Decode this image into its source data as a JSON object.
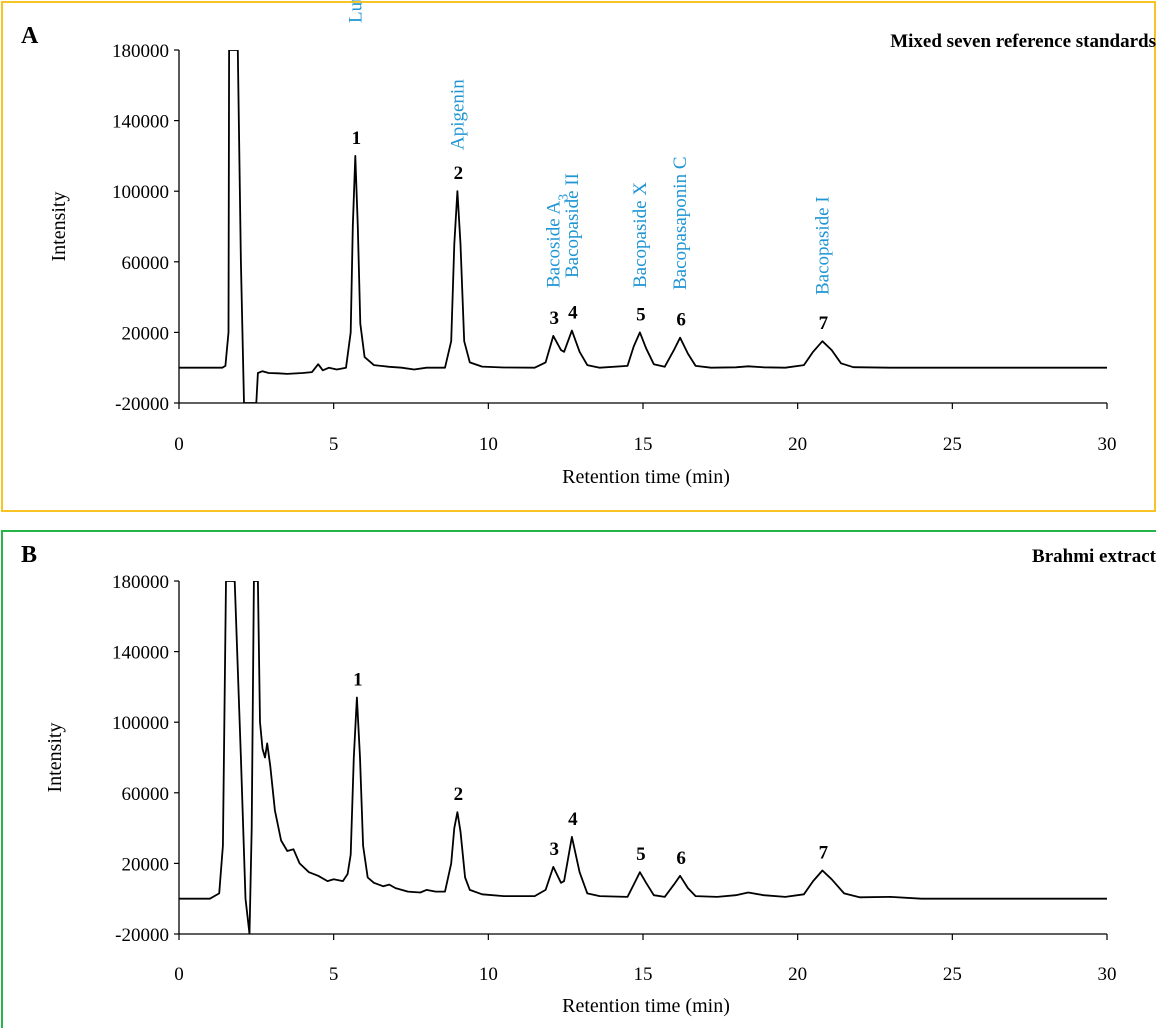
{
  "accent_colors": {
    "panel_a_border": "#f7c325",
    "panel_b_border": "#26b34a",
    "compound_label": "#1f95d3",
    "trace": "#000000"
  },
  "chart_data": [
    {
      "type": "line",
      "panel_letter": "A",
      "title": "Mixed seven reference standards",
      "xlabel": "Retention time (min)",
      "ylabel": "Intensity",
      "xlim": [
        0,
        30
      ],
      "ylim": [
        -20000,
        180000
      ],
      "x_ticks": [
        0,
        5,
        10,
        15,
        20,
        25,
        30
      ],
      "y_ticks": [
        -20000,
        20000,
        60000,
        100000,
        140000,
        180000
      ],
      "x_tick_labels": [
        "0",
        "5",
        "10",
        "15",
        "20",
        "25",
        "30"
      ],
      "y_tick_labels": [
        "-20000",
        "20000",
        "60000",
        "100000",
        "140000",
        "180000"
      ],
      "baseline": 0,
      "peaks": [
        {
          "num": "1",
          "x": 5.7,
          "y": 120000,
          "compound": "Luteolin"
        },
        {
          "num": "2",
          "x": 9.0,
          "y": 100000,
          "compound": "Apigenin"
        },
        {
          "num": "3",
          "x": 12.1,
          "y": 18000,
          "compound": "Bacoside A",
          "compound_sub": "3"
        },
        {
          "num": "4",
          "x": 12.7,
          "y": 21000,
          "compound": "Bacopaside II"
        },
        {
          "num": "5",
          "x": 14.9,
          "y": 20000,
          "compound": "Bacopaside X"
        },
        {
          "num": "6",
          "x": 16.2,
          "y": 17000,
          "compound": "Bacopasaponin C"
        },
        {
          "num": "7",
          "x": 20.8,
          "y": 15000,
          "compound": "Bacopaside I"
        }
      ],
      "trace": [
        [
          0,
          0
        ],
        [
          1.4,
          0
        ],
        [
          1.5,
          1000
        ],
        [
          1.6,
          20000
        ],
        [
          1.62,
          180000
        ],
        [
          1.9,
          180000
        ],
        [
          2.0,
          60000
        ],
        [
          2.1,
          -20000
        ],
        [
          2.5,
          -20000
        ],
        [
          2.55,
          -3000
        ],
        [
          2.7,
          -2000
        ],
        [
          2.9,
          -3000
        ],
        [
          3.2,
          -3200
        ],
        [
          3.5,
          -3500
        ],
        [
          4.0,
          -3000
        ],
        [
          4.3,
          -2500
        ],
        [
          4.5,
          2000
        ],
        [
          4.65,
          -1500
        ],
        [
          4.85,
          0
        ],
        [
          5.1,
          -1000
        ],
        [
          5.4,
          0
        ],
        [
          5.55,
          20000
        ],
        [
          5.62,
          80000
        ],
        [
          5.7,
          120000
        ],
        [
          5.78,
          80000
        ],
        [
          5.86,
          25000
        ],
        [
          6.0,
          6000
        ],
        [
          6.3,
          1500
        ],
        [
          6.8,
          500
        ],
        [
          7.2,
          0
        ],
        [
          7.6,
          -1000
        ],
        [
          8.0,
          0
        ],
        [
          8.6,
          0
        ],
        [
          8.8,
          15000
        ],
        [
          8.9,
          70000
        ],
        [
          9.0,
          100000
        ],
        [
          9.1,
          70000
        ],
        [
          9.22,
          15000
        ],
        [
          9.4,
          3000
        ],
        [
          9.8,
          600
        ],
        [
          10.5,
          100
        ],
        [
          11.5,
          0
        ],
        [
          11.85,
          3000
        ],
        [
          12.1,
          18000
        ],
        [
          12.35,
          10000
        ],
        [
          12.45,
          9000
        ],
        [
          12.7,
          21000
        ],
        [
          12.95,
          9000
        ],
        [
          13.2,
          1500
        ],
        [
          13.6,
          0
        ],
        [
          14.5,
          1000
        ],
        [
          14.7,
          12000
        ],
        [
          14.9,
          20000
        ],
        [
          15.1,
          11000
        ],
        [
          15.35,
          2000
        ],
        [
          15.7,
          500
        ],
        [
          16.0,
          10000
        ],
        [
          16.2,
          17000
        ],
        [
          16.45,
          8000
        ],
        [
          16.7,
          1000
        ],
        [
          17.2,
          0
        ],
        [
          18.0,
          200
        ],
        [
          18.4,
          800
        ],
        [
          18.9,
          200
        ],
        [
          19.6,
          0
        ],
        [
          20.2,
          1500
        ],
        [
          20.5,
          9000
        ],
        [
          20.8,
          15000
        ],
        [
          21.1,
          10000
        ],
        [
          21.4,
          2500
        ],
        [
          21.8,
          300
        ],
        [
          23.0,
          0
        ],
        [
          30.0,
          0
        ]
      ]
    },
    {
      "type": "line",
      "panel_letter": "B",
      "title": "Brahmi extract",
      "xlabel": "Retention time (min)",
      "ylabel": "Intensity",
      "xlim": [
        0,
        30
      ],
      "ylim": [
        -20000,
        180000
      ],
      "x_ticks": [
        0,
        5,
        10,
        15,
        20,
        25,
        30
      ],
      "y_ticks": [
        -20000,
        20000,
        60000,
        100000,
        140000,
        180000
      ],
      "x_tick_labels": [
        "0",
        "5",
        "10",
        "15",
        "20",
        "25",
        "30"
      ],
      "y_tick_labels": [
        "-20000",
        "20000",
        "60000",
        "100000",
        "140000",
        "180000"
      ],
      "baseline": 0,
      "peaks": [
        {
          "num": "1",
          "x": 5.75,
          "y": 114000
        },
        {
          "num": "2",
          "x": 9.0,
          "y": 49000
        },
        {
          "num": "3",
          "x": 12.1,
          "y": 18000
        },
        {
          "num": "4",
          "x": 12.7,
          "y": 35000
        },
        {
          "num": "5",
          "x": 14.9,
          "y": 15000
        },
        {
          "num": "6",
          "x": 16.2,
          "y": 13000
        },
        {
          "num": "7",
          "x": 20.8,
          "y": 16000
        }
      ],
      "trace": [
        [
          0,
          0
        ],
        [
          1.0,
          0
        ],
        [
          1.3,
          3000
        ],
        [
          1.42,
          30000
        ],
        [
          1.52,
          180000
        ],
        [
          1.8,
          180000
        ],
        [
          2.0,
          80000
        ],
        [
          2.15,
          0
        ],
        [
          2.28,
          -20000
        ],
        [
          2.35,
          40000
        ],
        [
          2.42,
          180000
        ],
        [
          2.55,
          180000
        ],
        [
          2.62,
          100000
        ],
        [
          2.7,
          85000
        ],
        [
          2.78,
          80000
        ],
        [
          2.85,
          88000
        ],
        [
          2.95,
          75000
        ],
        [
          3.1,
          50000
        ],
        [
          3.3,
          33000
        ],
        [
          3.5,
          27000
        ],
        [
          3.7,
          28000
        ],
        [
          3.9,
          20000
        ],
        [
          4.2,
          15000
        ],
        [
          4.5,
          13000
        ],
        [
          4.8,
          10000
        ],
        [
          5.0,
          11000
        ],
        [
          5.3,
          10000
        ],
        [
          5.45,
          14000
        ],
        [
          5.55,
          25000
        ],
        [
          5.65,
          80000
        ],
        [
          5.75,
          114000
        ],
        [
          5.85,
          80000
        ],
        [
          5.95,
          30000
        ],
        [
          6.1,
          12000
        ],
        [
          6.3,
          9000
        ],
        [
          6.6,
          7000
        ],
        [
          6.8,
          8000
        ],
        [
          7.0,
          6000
        ],
        [
          7.4,
          4000
        ],
        [
          7.8,
          3500
        ],
        [
          8.0,
          5000
        ],
        [
          8.3,
          4000
        ],
        [
          8.6,
          4000
        ],
        [
          8.8,
          20000
        ],
        [
          8.9,
          40000
        ],
        [
          9.0,
          49000
        ],
        [
          9.1,
          38000
        ],
        [
          9.25,
          12000
        ],
        [
          9.4,
          5000
        ],
        [
          9.8,
          2500
        ],
        [
          10.5,
          1500
        ],
        [
          11.5,
          1500
        ],
        [
          11.85,
          5000
        ],
        [
          12.1,
          18000
        ],
        [
          12.35,
          9000
        ],
        [
          12.45,
          10000
        ],
        [
          12.7,
          35000
        ],
        [
          12.95,
          15000
        ],
        [
          13.2,
          3000
        ],
        [
          13.6,
          1500
        ],
        [
          14.5,
          1000
        ],
        [
          14.7,
          8000
        ],
        [
          14.9,
          15000
        ],
        [
          15.1,
          9000
        ],
        [
          15.35,
          2000
        ],
        [
          15.7,
          1000
        ],
        [
          16.0,
          8000
        ],
        [
          16.2,
          13000
        ],
        [
          16.45,
          6000
        ],
        [
          16.7,
          1500
        ],
        [
          17.4,
          1000
        ],
        [
          18.0,
          2000
        ],
        [
          18.4,
          3500
        ],
        [
          18.9,
          2000
        ],
        [
          19.6,
          1000
        ],
        [
          20.2,
          2500
        ],
        [
          20.5,
          10000
        ],
        [
          20.8,
          16000
        ],
        [
          21.1,
          11000
        ],
        [
          21.5,
          3000
        ],
        [
          22.0,
          800
        ],
        [
          23.0,
          1000
        ],
        [
          24.0,
          0
        ],
        [
          30.0,
          0
        ]
      ]
    }
  ]
}
